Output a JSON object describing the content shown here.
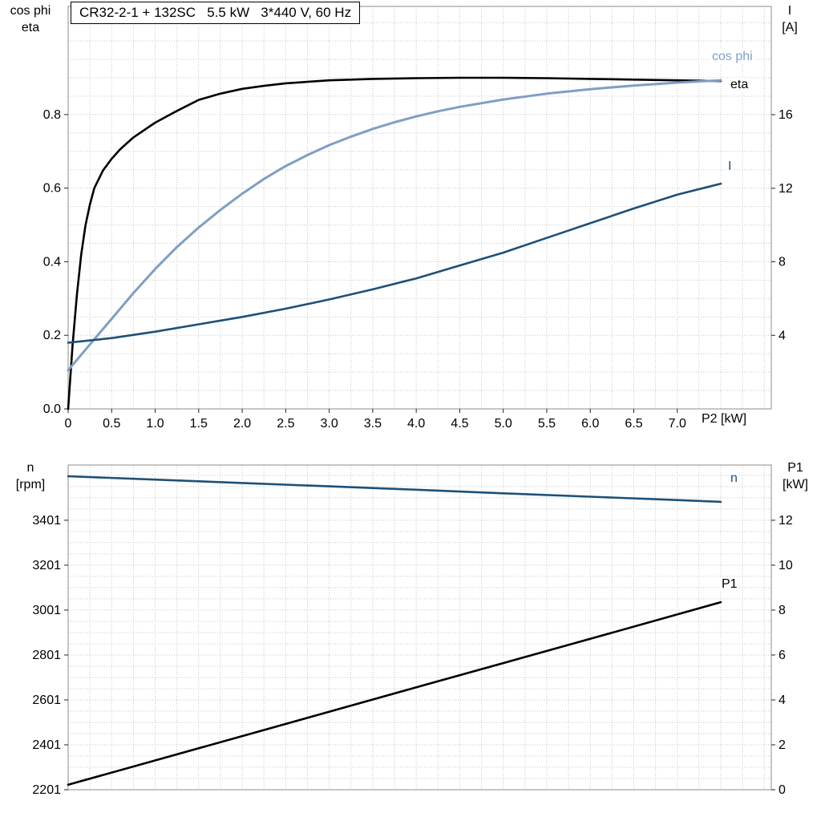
{
  "labels": {
    "title": "CR32-2-1 + 132SC   5.5 kW   3*440 V, 60 Hz",
    "top_left_line1": "cos phi",
    "top_left_line2": "eta",
    "top_right_line1": "I",
    "top_right_line2": "[A]",
    "bottom_left_line1": "n",
    "bottom_left_line2": "[rpm]",
    "bottom_right_line1": "P1",
    "bottom_right_line2": "[kW]",
    "x_axis_label": "P2 [kW]",
    "curve_cos_phi": "cos phi",
    "curve_eta": "eta",
    "curve_I": "I",
    "curve_n": "n",
    "curve_P1": "P1"
  },
  "colors": {
    "black": "#000000",
    "light_blue": "#7f9fc4",
    "dark_blue": "#1d5078",
    "grid": "#c7c7c7",
    "frame": "#8e8e8e"
  },
  "chart_data": [
    {
      "type": "line",
      "title": "CR32-2-1 + 132SC   5.5 kW   3*440 V, 60 Hz",
      "x_axis": {
        "label": "P2 [kW]",
        "min": 0,
        "max": 8.08,
        "grid_step": 0.25,
        "ticks": [
          "0",
          "0.5",
          "1.0",
          "1.5",
          "2.0",
          "2.5",
          "3.0",
          "3.5",
          "4.0",
          "4.5",
          "5.0",
          "5.5",
          "6.0",
          "6.5",
          "7.0"
        ]
      },
      "y_left": {
        "label": "cos phi / eta",
        "min": 0,
        "max": 1.094,
        "grid_step": 0.05,
        "ticks": [
          "0.0",
          "0.2",
          "0.4",
          "0.6",
          "0.8"
        ]
      },
      "y_right": {
        "label": "I [A]",
        "min": 0,
        "max": 21.89,
        "ticks": [
          "4",
          "8",
          "12",
          "16"
        ]
      },
      "series": [
        {
          "name": "eta",
          "color": "#000000",
          "axis": "left",
          "width": 2.6,
          "points": [
            [
              0,
              0
            ],
            [
              0.05,
              0.17
            ],
            [
              0.1,
              0.31
            ],
            [
              0.15,
              0.42
            ],
            [
              0.2,
              0.5
            ],
            [
              0.25,
              0.555
            ],
            [
              0.3,
              0.6
            ],
            [
              0.4,
              0.648
            ],
            [
              0.5,
              0.68
            ],
            [
              0.6,
              0.706
            ],
            [
              0.75,
              0.738
            ],
            [
              0.9,
              0.762
            ],
            [
              1,
              0.778
            ],
            [
              1.25,
              0.81
            ],
            [
              1.5,
              0.84
            ],
            [
              1.75,
              0.857
            ],
            [
              2,
              0.87
            ],
            [
              2.25,
              0.878
            ],
            [
              2.5,
              0.885
            ],
            [
              3,
              0.893
            ],
            [
              3.5,
              0.897
            ],
            [
              4,
              0.899
            ],
            [
              4.5,
              0.9
            ],
            [
              5,
              0.9
            ],
            [
              5.5,
              0.899
            ],
            [
              6,
              0.897
            ],
            [
              6.5,
              0.895
            ],
            [
              7,
              0.893
            ],
            [
              7.5,
              0.891
            ]
          ]
        },
        {
          "name": "cos phi",
          "color": "#7f9fc4",
          "axis": "left",
          "width": 3,
          "points": [
            [
              0,
              0.105
            ],
            [
              0.25,
              0.175
            ],
            [
              0.5,
              0.245
            ],
            [
              0.75,
              0.315
            ],
            [
              1,
              0.38
            ],
            [
              1.25,
              0.44
            ],
            [
              1.5,
              0.493
            ],
            [
              1.75,
              0.541
            ],
            [
              2,
              0.585
            ],
            [
              2.25,
              0.625
            ],
            [
              2.5,
              0.66
            ],
            [
              2.75,
              0.69
            ],
            [
              3,
              0.717
            ],
            [
              3.25,
              0.74
            ],
            [
              3.5,
              0.761
            ],
            [
              3.75,
              0.779
            ],
            [
              4,
              0.795
            ],
            [
              4.25,
              0.809
            ],
            [
              4.5,
              0.821
            ],
            [
              5,
              0.841
            ],
            [
              5.5,
              0.857
            ],
            [
              6,
              0.869
            ],
            [
              6.5,
              0.879
            ],
            [
              7,
              0.887
            ],
            [
              7.5,
              0.893
            ]
          ]
        },
        {
          "name": "I",
          "color": "#1d5078",
          "axis": "right",
          "width": 2.6,
          "points": [
            [
              0,
              3.6
            ],
            [
              0.5,
              3.85
            ],
            [
              1,
              4.2
            ],
            [
              1.5,
              4.6
            ],
            [
              2,
              5.0
            ],
            [
              2.5,
              5.45
            ],
            [
              3,
              5.95
            ],
            [
              3.5,
              6.5
            ],
            [
              4,
              7.1
            ],
            [
              4.5,
              7.8
            ],
            [
              5,
              8.5
            ],
            [
              5.5,
              9.3
            ],
            [
              6,
              10.1
            ],
            [
              6.5,
              10.9
            ],
            [
              7,
              11.65
            ],
            [
              7.5,
              12.25
            ]
          ]
        }
      ]
    },
    {
      "type": "line",
      "title": "",
      "x_axis": {
        "label": "",
        "min": 0,
        "max": 8.08,
        "grid_step": 0.25,
        "ticks": []
      },
      "y_left": {
        "label": "n [rpm]",
        "min": 2201,
        "max": 3647,
        "grid_step": 50,
        "ticks": [
          "2201",
          "2401",
          "2601",
          "2801",
          "3001",
          "3201",
          "3401"
        ]
      },
      "y_right": {
        "label": "P1 [kW]",
        "min": 0,
        "max": 14.46,
        "ticks": [
          "0",
          "2",
          "4",
          "6",
          "8",
          "10",
          "12"
        ]
      },
      "series": [
        {
          "name": "n",
          "color": "#1d5078",
          "axis": "left",
          "width": 2.6,
          "points": [
            [
              0,
              3597
            ],
            [
              1,
              3582
            ],
            [
              2,
              3567
            ],
            [
              3,
              3552
            ],
            [
              4,
              3537
            ],
            [
              5,
              3521
            ],
            [
              6,
              3506
            ],
            [
              7,
              3491
            ],
            [
              7.5,
              3483
            ]
          ]
        },
        {
          "name": "P1",
          "color": "#000000",
          "axis": "right",
          "width": 2.6,
          "points": [
            [
              0,
              0.22
            ],
            [
              2,
              2.39
            ],
            [
              4,
              4.56
            ],
            [
              6,
              6.72
            ],
            [
              7.5,
              8.35
            ]
          ]
        }
      ]
    }
  ]
}
